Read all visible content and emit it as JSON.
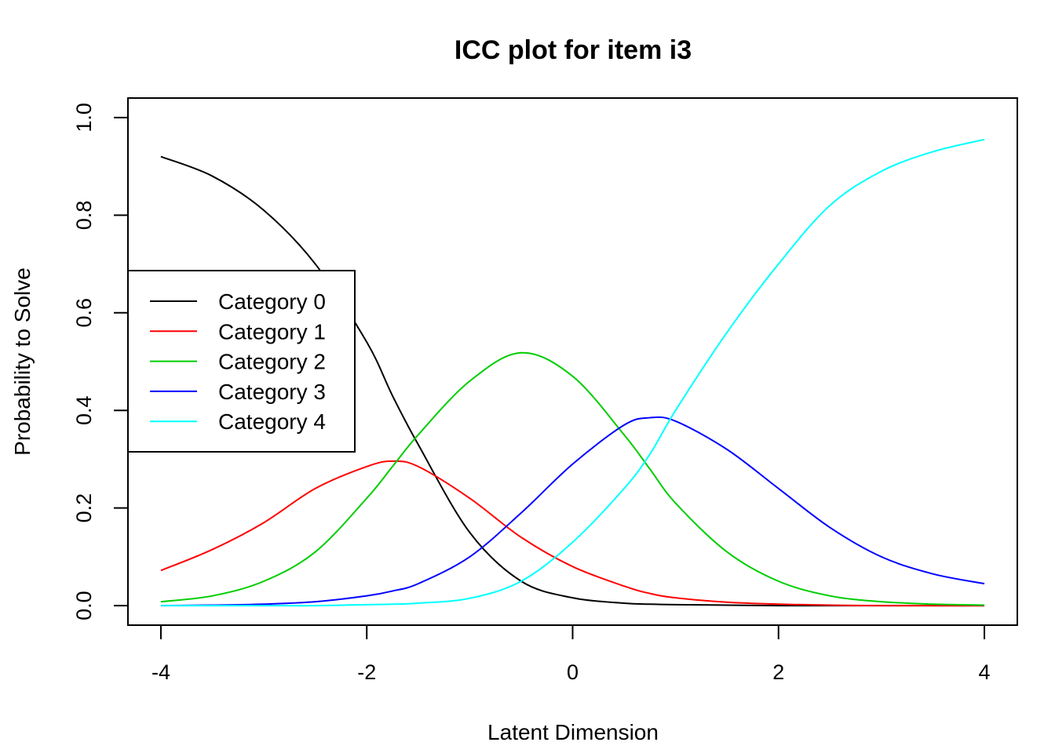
{
  "chart_data": {
    "type": "line",
    "title": "ICC plot for item i3",
    "xlabel": "Latent Dimension",
    "ylabel": "Probability to Solve",
    "xlim": [
      -4.32,
      4.32
    ],
    "ylim": [
      -0.04,
      1.04
    ],
    "x_ticks": [
      -4,
      -2,
      0,
      2,
      4
    ],
    "x_tick_labels": [
      "-4",
      "-2",
      "0",
      "2",
      "4"
    ],
    "y_ticks": [
      0.0,
      0.2,
      0.4,
      0.6,
      0.8,
      1.0
    ],
    "y_tick_labels": [
      "0.0",
      "0.2",
      "0.4",
      "0.6",
      "0.8",
      "1.0"
    ],
    "grid": false,
    "legend_position": "left",
    "x": [
      -4,
      -3.5,
      -3,
      -2.5,
      -2,
      -1.75,
      -1.5,
      -1,
      -0.5,
      0,
      0.5,
      0.75,
      1,
      1.5,
      2,
      2.5,
      3,
      3.5,
      4
    ],
    "series": [
      {
        "name": "Category 0",
        "color": "#000000",
        "values": [
          0.92,
          0.88,
          0.81,
          0.7,
          0.54,
          0.43,
          0.33,
          0.15,
          0.05,
          0.016,
          0.005,
          0.003,
          0.002,
          0.001,
          0.0,
          0.0,
          0.0,
          0.0,
          0.0
        ]
      },
      {
        "name": "Category 1",
        "color": "#ff0000",
        "values": [
          0.072,
          0.115,
          0.17,
          0.24,
          0.285,
          0.296,
          0.285,
          0.22,
          0.14,
          0.08,
          0.04,
          0.025,
          0.016,
          0.007,
          0.003,
          0.001,
          0.0,
          0.0,
          0.0
        ]
      },
      {
        "name": "Category 2",
        "color": "#00cd00",
        "values": [
          0.008,
          0.02,
          0.05,
          0.11,
          0.22,
          0.285,
          0.35,
          0.46,
          0.518,
          0.47,
          0.35,
          0.28,
          0.21,
          0.11,
          0.05,
          0.02,
          0.008,
          0.003,
          0.001
        ]
      },
      {
        "name": "Category 3",
        "color": "#0000ff",
        "values": [
          0.0,
          0.001,
          0.003,
          0.008,
          0.02,
          0.03,
          0.045,
          0.1,
          0.19,
          0.29,
          0.37,
          0.385,
          0.378,
          0.32,
          0.24,
          0.16,
          0.1,
          0.065,
          0.045
        ]
      },
      {
        "name": "Category 4",
        "color": "#00ffff",
        "values": [
          0.0,
          0.0,
          0.0,
          0.0,
          0.002,
          0.003,
          0.005,
          0.015,
          0.05,
          0.13,
          0.24,
          0.31,
          0.4,
          0.56,
          0.7,
          0.82,
          0.89,
          0.93,
          0.955
        ]
      }
    ]
  }
}
